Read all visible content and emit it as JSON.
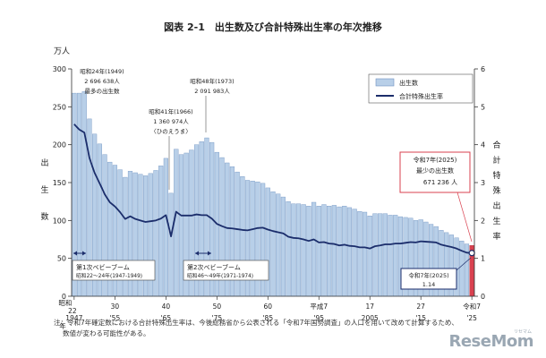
{
  "title": "図表 2-1　出生数及び合計特殊出生率の年次推移",
  "left_axis_unit": "万人",
  "left_axis_label": "出生数",
  "right_axis_label": "合計特殊出生率",
  "legend": {
    "births": "出生数",
    "tfr": "合計特殊出生率"
  },
  "annotations": {
    "a1949": {
      "l1": "昭和24年(1949)",
      "l2": "2 696 638人",
      "l3": "最多の出生数"
    },
    "a1966": {
      "l1": "昭和41年(1966)",
      "l2": "1 360 974人",
      "l3": "〈ひのえうま〉"
    },
    "a1973": {
      "l1": "昭和48年(1973)",
      "l2": "2 091 983人"
    },
    "baby1": {
      "l1": "第1次ベビーブーム",
      "l2": "昭和22〜24年(1947-1949)"
    },
    "baby2": {
      "l1": "第2次ベビーブーム",
      "l2": "昭和46〜49年(1971-1974)"
    },
    "r2025_births": {
      "l1": "令和7年(2025)",
      "l2": "最少の出生数",
      "l3": "671 236 人"
    },
    "r2025_tfr": {
      "l1": "令和7年(2025)",
      "l2": "1.14"
    }
  },
  "x_tick_labels": {
    "top": [
      "昭和",
      "22",
      "30",
      "40",
      "50",
      "60",
      "平成7",
      "17",
      "27",
      "令和7"
    ],
    "bottom": [
      "1947",
      "'55",
      "'65",
      "'75",
      "'85",
      "'95",
      "2005",
      "'15",
      "'25"
    ],
    "year_label": "年"
  },
  "note": {
    "l1": "注：令和7年確定数における合計特殊出生率は、今後総務省から公表される「令和7年国勢調査」の人口を用いて改めて計算するため、",
    "l2": "数値が変わる可能性がある。"
  },
  "logo": "ReseMom",
  "logo_kana": "リセマム",
  "colors": {
    "bar": "#b8cfe8",
    "bar_stroke": "#6f92c0",
    "bar_highlight": "#d9414f",
    "line": "#1b2d6b",
    "callout": "#d9414f"
  },
  "chart_data": {
    "type": "bar",
    "title": "図表 2-1　出生数及び合計特殊出生率の年次推移",
    "ylabel": "出生数（万人）",
    "y2label": "合計特殊出生率",
    "ylim": [
      0,
      300
    ],
    "y2lim": [
      0,
      6
    ],
    "yticks": [
      0,
      50,
      100,
      150,
      200,
      250,
      300
    ],
    "y2ticks": [
      0,
      1,
      2,
      3,
      4,
      5,
      6
    ],
    "x": [
      1947,
      1948,
      1949,
      1950,
      1951,
      1952,
      1953,
      1954,
      1955,
      1956,
      1957,
      1958,
      1959,
      1960,
      1961,
      1962,
      1963,
      1964,
      1965,
      1966,
      1967,
      1968,
      1969,
      1970,
      1971,
      1972,
      1973,
      1974,
      1975,
      1976,
      1977,
      1978,
      1979,
      1980,
      1981,
      1982,
      1983,
      1984,
      1985,
      1986,
      1987,
      1988,
      1989,
      1990,
      1991,
      1992,
      1993,
      1994,
      1995,
      1996,
      1997,
      1998,
      1999,
      2000,
      2001,
      2002,
      2003,
      2004,
      2005,
      2006,
      2007,
      2008,
      2009,
      2010,
      2011,
      2012,
      2013,
      2014,
      2015,
      2016,
      2017,
      2018,
      2019,
      2020,
      2021,
      2022,
      2023,
      2024,
      2025
    ],
    "series": [
      {
        "name": "出生数",
        "type": "bar",
        "axis": "left",
        "values": [
          268,
          268,
          270,
          234,
          214,
          201,
          187,
          177,
          173,
          167,
          157,
          165,
          163,
          161,
          159,
          162,
          166,
          172,
          182,
          136,
          194,
          187,
          189,
          193,
          200,
          204,
          209,
          203,
          190,
          183,
          176,
          171,
          164,
          158,
          153,
          152,
          151,
          149,
          143,
          138,
          135,
          131,
          125,
          122,
          122,
          121,
          119,
          124,
          119,
          121,
          119,
          120,
          118,
          119,
          117,
          115,
          112,
          111,
          106,
          109,
          109,
          109,
          107,
          107,
          105,
          104,
          103,
          100,
          101,
          98,
          95,
          92,
          87,
          84,
          81,
          77,
          73,
          69,
          67
        ]
      },
      {
        "name": "合計特殊出生率",
        "type": "line",
        "axis": "right",
        "values": [
          4.54,
          4.4,
          4.32,
          3.65,
          3.26,
          2.98,
          2.69,
          2.48,
          2.37,
          2.22,
          2.04,
          2.11,
          2.04,
          2.0,
          1.96,
          1.98,
          2.0,
          2.05,
          2.14,
          1.58,
          2.23,
          2.13,
          2.13,
          2.13,
          2.16,
          2.14,
          2.14,
          2.05,
          1.91,
          1.85,
          1.8,
          1.79,
          1.77,
          1.75,
          1.74,
          1.77,
          1.8,
          1.81,
          1.76,
          1.72,
          1.69,
          1.66,
          1.57,
          1.54,
          1.53,
          1.5,
          1.46,
          1.5,
          1.42,
          1.43,
          1.39,
          1.38,
          1.34,
          1.36,
          1.33,
          1.32,
          1.29,
          1.29,
          1.26,
          1.32,
          1.34,
          1.37,
          1.37,
          1.39,
          1.39,
          1.41,
          1.43,
          1.42,
          1.45,
          1.44,
          1.43,
          1.42,
          1.36,
          1.33,
          1.3,
          1.26,
          1.2,
          1.15,
          1.14
        ]
      }
    ],
    "legend": "top-right",
    "grid": false
  }
}
